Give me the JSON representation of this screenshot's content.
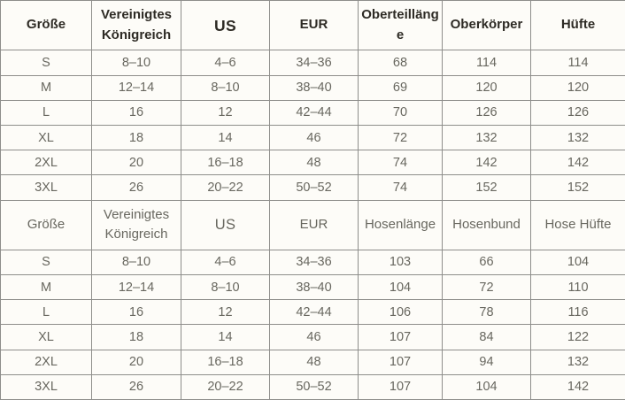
{
  "chart_data": [
    {
      "type": "table",
      "columns": [
        "Größe",
        "Vereinigtes Königreich",
        "US",
        "EUR",
        "Oberteillänge",
        "Oberkörper",
        "Hüfte"
      ],
      "rows": [
        [
          "S",
          "8–10",
          "4–6",
          "34–36",
          "68",
          "114",
          "114"
        ],
        [
          "M",
          "12–14",
          "8–10",
          "38–40",
          "69",
          "120",
          "120"
        ],
        [
          "L",
          "16",
          "12",
          "42–44",
          "70",
          "126",
          "126"
        ],
        [
          "XL",
          "18",
          "14",
          "46",
          "72",
          "132",
          "132"
        ],
        [
          "2XL",
          "20",
          "16–18",
          "48",
          "74",
          "142",
          "142"
        ],
        [
          "3XL",
          "26",
          "20–22",
          "50–52",
          "74",
          "152",
          "152"
        ]
      ]
    },
    {
      "type": "table",
      "columns": [
        "Größe",
        "Vereinigtes Königreich",
        "US",
        "EUR",
        "Hosenlänge",
        "Hosenbund",
        "Hose Hüfte"
      ],
      "rows": [
        [
          "S",
          "8–10",
          "4–6",
          "34–36",
          "103",
          "66",
          "104"
        ],
        [
          "M",
          "12–14",
          "8–10",
          "38–40",
          "104",
          "72",
          "110"
        ],
        [
          "L",
          "16",
          "12",
          "42–44",
          "106",
          "78",
          "116"
        ],
        [
          "XL",
          "18",
          "14",
          "46",
          "107",
          "84",
          "122"
        ],
        [
          "2XL",
          "20",
          "16–18",
          "48",
          "107",
          "94",
          "132"
        ],
        [
          "3XL",
          "26",
          "20–22",
          "50–52",
          "107",
          "104",
          "142"
        ]
      ]
    }
  ],
  "colors": {
    "header_text": "#2e2b25",
    "body_text": "#68675f",
    "border": "#8e8e8b",
    "background": "#fdfcf8"
  }
}
